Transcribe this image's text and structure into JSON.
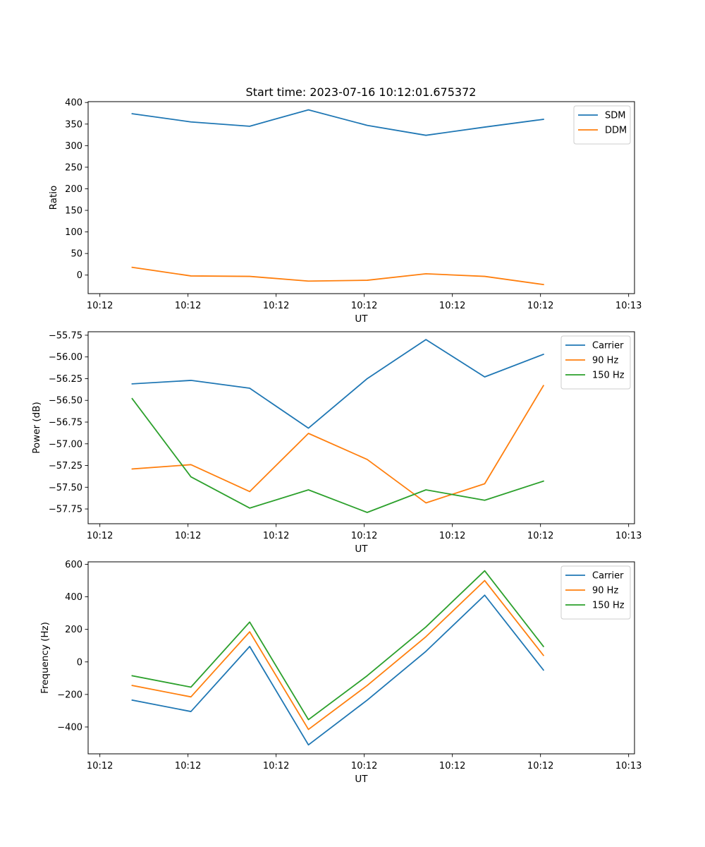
{
  "figure_title": "Start time: 2023-07-16 10:12:01.675372",
  "chart_data": [
    {
      "type": "line",
      "title": "Start time: 2023-07-16 10:12:01.675372",
      "xlabel": "UT",
      "ylabel": "Ratio",
      "x_tick_labels": [
        "10:12",
        "10:12",
        "10:12",
        "10:12",
        "10:12",
        "10:12",
        "10:13"
      ],
      "x_range": [
        -0.2,
        9.1
      ],
      "x": [
        0.55,
        1.55,
        2.55,
        3.55,
        4.55,
        5.55,
        6.55,
        7.55
      ],
      "ylim": [
        -43,
        402
      ],
      "y_ticks": [
        0,
        50,
        100,
        150,
        200,
        250,
        300,
        350,
        400
      ],
      "legend_position": "top-right",
      "series": [
        {
          "name": "SDM",
          "color": "#1f77b4",
          "values": [
            374,
            355,
            345,
            383,
            347,
            324,
            343,
            361
          ]
        },
        {
          "name": "DDM",
          "color": "#ff7f0e",
          "values": [
            18,
            -2,
            -3,
            -14,
            -12,
            3,
            -3,
            -22
          ]
        }
      ]
    },
    {
      "type": "line",
      "title": "",
      "xlabel": "UT",
      "ylabel": "Power (dB)",
      "x_tick_labels": [
        "10:12",
        "10:12",
        "10:12",
        "10:12",
        "10:12",
        "10:12",
        "10:13"
      ],
      "x_range": [
        -0.2,
        9.1
      ],
      "x": [
        0.55,
        1.55,
        2.55,
        3.55,
        4.55,
        5.55,
        6.55,
        7.55
      ],
      "ylim": [
        -57.92,
        -55.71
      ],
      "y_ticks": [
        -57.75,
        -57.5,
        -57.25,
        -57.0,
        -56.75,
        -56.5,
        -56.25,
        -56.0,
        -55.75
      ],
      "y_tick_labels": [
        "−57.75",
        "−57.50",
        "−57.25",
        "−57.00",
        "−56.75",
        "−56.50",
        "−56.25",
        "−56.00",
        "−55.75"
      ],
      "legend_position": "top-right",
      "series": [
        {
          "name": "Carrier",
          "color": "#1f77b4",
          "values": [
            -56.31,
            -56.27,
            -56.36,
            -56.82,
            -56.25,
            -55.8,
            -56.23,
            -55.97
          ]
        },
        {
          "name": "90 Hz",
          "color": "#ff7f0e",
          "values": [
            -57.29,
            -57.24,
            -57.55,
            -56.88,
            -57.18,
            -57.68,
            -57.46,
            -56.33
          ]
        },
        {
          "name": "150 Hz",
          "color": "#2ca02c",
          "values": [
            -56.48,
            -57.38,
            -57.74,
            -57.53,
            -57.79,
            -57.53,
            -57.65,
            -57.43
          ]
        }
      ]
    },
    {
      "type": "line",
      "title": "",
      "xlabel": "UT",
      "ylabel": "Frequency (Hz)",
      "x_tick_labels": [
        "10:12",
        "10:12",
        "10:12",
        "10:12",
        "10:12",
        "10:12",
        "10:13"
      ],
      "x_range": [
        -0.2,
        9.1
      ],
      "x": [
        0.55,
        1.55,
        2.55,
        3.55,
        4.55,
        5.55,
        6.55,
        7.55
      ],
      "ylim": [
        -565,
        615
      ],
      "y_ticks": [
        -400,
        -200,
        0,
        200,
        400,
        600
      ],
      "y_tick_labels": [
        "−400",
        "−200",
        "0",
        "200",
        "400",
        "600"
      ],
      "legend_position": "top-right",
      "series": [
        {
          "name": "Carrier",
          "color": "#1f77b4",
          "values": [
            -235,
            -305,
            95,
            -510,
            -235,
            65,
            410,
            -50
          ]
        },
        {
          "name": "90 Hz",
          "color": "#ff7f0e",
          "values": [
            -145,
            -215,
            185,
            -415,
            -145,
            155,
            500,
            40
          ]
        },
        {
          "name": "150 Hz",
          "color": "#2ca02c",
          "values": [
            -85,
            -155,
            245,
            -355,
            -85,
            215,
            560,
            95
          ]
        }
      ]
    }
  ]
}
